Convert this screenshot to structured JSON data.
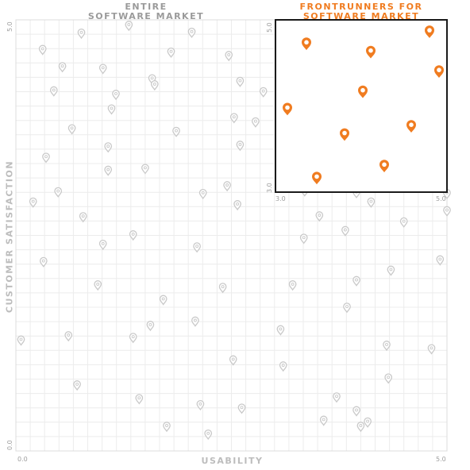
{
  "headers": {
    "left": [
      "ENTIRE",
      "SOFTWARE MARKET"
    ],
    "right": [
      "FRONTRUNNERS FOR",
      "SOFTWARE MARKET"
    ]
  },
  "colors": {
    "accent": "#f07c20",
    "faint_pin": "#c9c9c9",
    "grid": "#ececec",
    "frame": "#1a1a1a"
  },
  "chart_data": [
    {
      "type": "scatter",
      "title": "ENTIRE SOFTWARE MARKET",
      "xlabel": "USABILITY",
      "ylabel": "CUSTOMER SATISFACTION",
      "xlim": [
        0,
        5
      ],
      "ylim": [
        0,
        5
      ],
      "x_ticks": [
        "0.0",
        "5.0"
      ],
      "y_ticks": [
        "0.0",
        "5.0"
      ],
      "grid": true,
      "points": [
        [
          0.31,
          4.65
        ],
        [
          0.76,
          4.84
        ],
        [
          1.31,
          4.93
        ],
        [
          2.04,
          4.85
        ],
        [
          0.54,
          4.45
        ],
        [
          1.01,
          4.43
        ],
        [
          1.58,
          4.31
        ],
        [
          1.8,
          4.62
        ],
        [
          2.6,
          4.28
        ],
        [
          0.44,
          4.17
        ],
        [
          1.16,
          4.13
        ],
        [
          1.61,
          4.24
        ],
        [
          2.47,
          4.58
        ],
        [
          2.87,
          4.16
        ],
        [
          3.1,
          4.44
        ],
        [
          3.35,
          3.96
        ],
        [
          1.11,
          3.96
        ],
        [
          0.65,
          3.73
        ],
        [
          1.86,
          3.7
        ],
        [
          2.53,
          3.86
        ],
        [
          2.78,
          3.81
        ],
        [
          1.07,
          3.52
        ],
        [
          2.6,
          3.54
        ],
        [
          3.12,
          3.48
        ],
        [
          0.35,
          3.4
        ],
        [
          1.07,
          3.25
        ],
        [
          1.5,
          3.27
        ],
        [
          2.17,
          2.98
        ],
        [
          2.45,
          3.07
        ],
        [
          3.35,
          3.01
        ],
        [
          3.95,
          2.99
        ],
        [
          0.49,
          3.0
        ],
        [
          0.2,
          2.88
        ],
        [
          0.78,
          2.71
        ],
        [
          2.57,
          2.85
        ],
        [
          3.52,
          2.72
        ],
        [
          4.12,
          2.88
        ],
        [
          4.5,
          2.65
        ],
        [
          5.0,
          2.98
        ],
        [
          5.0,
          2.78
        ],
        [
          1.36,
          2.5
        ],
        [
          0.32,
          2.19
        ],
        [
          1.01,
          2.39
        ],
        [
          2.1,
          2.36
        ],
        [
          3.34,
          2.46
        ],
        [
          3.82,
          2.55
        ],
        [
          4.35,
          2.09
        ],
        [
          0.95,
          1.92
        ],
        [
          1.71,
          1.75
        ],
        [
          2.4,
          1.89
        ],
        [
          3.21,
          1.92
        ],
        [
          3.95,
          1.97
        ],
        [
          4.92,
          2.21
        ],
        [
          1.56,
          1.45
        ],
        [
          2.08,
          1.5
        ],
        [
          3.07,
          1.4
        ],
        [
          3.84,
          1.66
        ],
        [
          4.3,
          1.22
        ],
        [
          4.82,
          1.18
        ],
        [
          0.06,
          1.28
        ],
        [
          0.61,
          1.33
        ],
        [
          1.36,
          1.31
        ],
        [
          2.52,
          1.05
        ],
        [
          3.1,
          0.98
        ],
        [
          4.32,
          0.84
        ],
        [
          0.71,
          0.76
        ],
        [
          1.43,
          0.6
        ],
        [
          2.14,
          0.53
        ],
        [
          2.62,
          0.49
        ],
        [
          3.57,
          0.35
        ],
        [
          4.0,
          0.28
        ],
        [
          1.75,
          0.28
        ],
        [
          2.23,
          0.19
        ],
        [
          3.72,
          0.62
        ],
        [
          3.95,
          0.46
        ],
        [
          4.08,
          0.33
        ]
      ]
    },
    {
      "type": "scatter",
      "title": "FRONTRUNNERS FOR SOFTWARE MARKET",
      "xlim": [
        3,
        5
      ],
      "ylim": [
        3,
        5
      ],
      "x_ticks": [
        "3.0",
        "5.0"
      ],
      "y_ticks": [
        "3.0",
        "5.0"
      ],
      "grid": false,
      "points": [
        [
          3.31,
          4.83
        ],
        [
          4.12,
          4.72
        ],
        [
          4.86,
          4.99
        ],
        [
          4.98,
          4.46
        ],
        [
          3.07,
          3.96
        ],
        [
          4.02,
          4.19
        ],
        [
          3.79,
          3.62
        ],
        [
          4.63,
          3.73
        ],
        [
          4.29,
          3.2
        ],
        [
          3.44,
          3.04
        ]
      ]
    }
  ]
}
